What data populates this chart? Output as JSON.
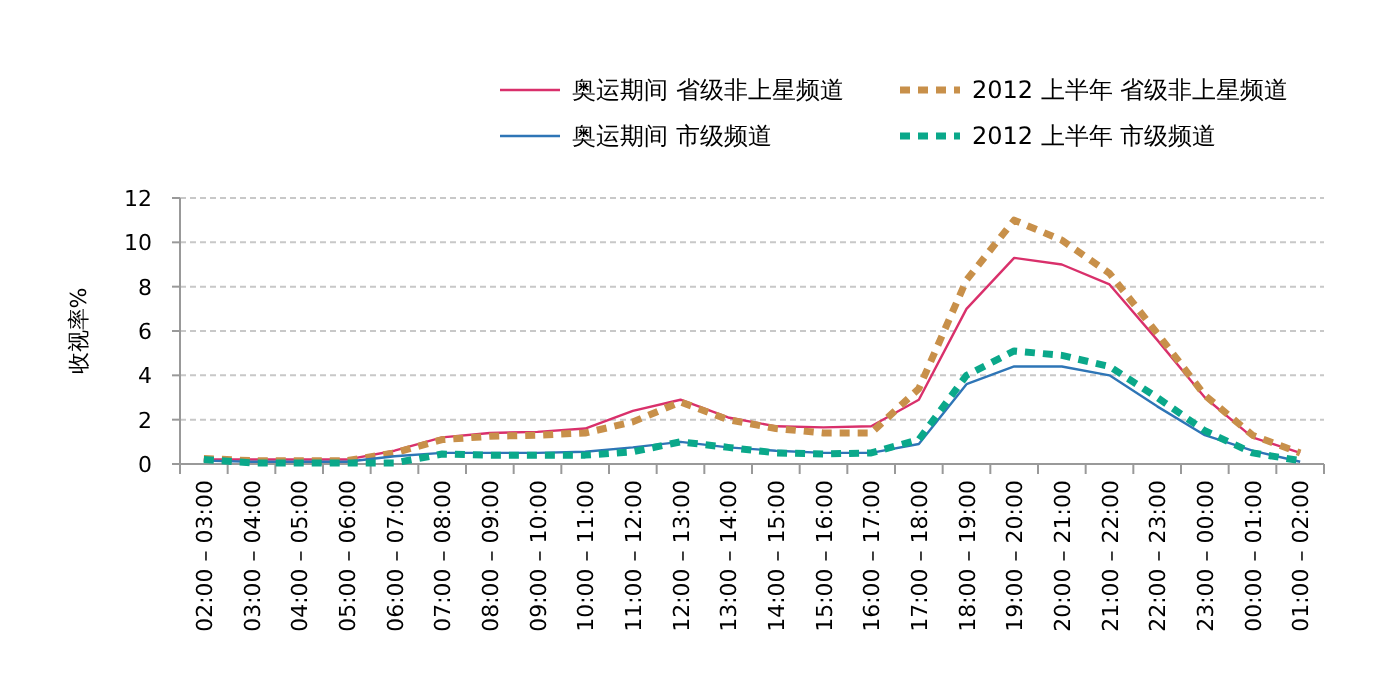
{
  "chart_data": {
    "type": "line",
    "ylabel": "收视率%",
    "categories": [
      "02:00 – 03:00",
      "03:00 – 04:00",
      "04:00 – 05:00",
      "05:00 – 06:00",
      "06:00 – 07:00",
      "07:00 – 08:00",
      "08:00 – 09:00",
      "09:00 – 10:00",
      "10:00 – 11:00",
      "11:00 – 12:00",
      "12:00 – 13:00",
      "13:00 – 14:00",
      "14:00 – 15:00",
      "15:00 – 16:00",
      "16:00 – 17:00",
      "17:00 – 18:00",
      "18:00 – 19:00",
      "19:00 – 20:00",
      "20:00 – 21:00",
      "21:00 – 22:00",
      "22:00 – 23:00",
      "23:00 – 00:00",
      "00:00 – 01:00",
      "01:00 – 02:00"
    ],
    "series": [
      {
        "name": "奥运期间 省级非上星频道",
        "color": "#d9306b",
        "line_style": "solid",
        "values": [
          0.2,
          0.2,
          0.2,
          0.2,
          0.6,
          1.2,
          1.4,
          1.45,
          1.6,
          2.4,
          2.9,
          2.1,
          1.7,
          1.65,
          1.7,
          2.9,
          7.0,
          9.3,
          9.0,
          8.1,
          5.6,
          3.0,
          1.2,
          0.5
        ]
      },
      {
        "name": "2012 上半年 省级非上星频道",
        "color": "#c8904a",
        "line_style": "dashed",
        "values": [
          0.25,
          0.15,
          0.15,
          0.15,
          0.5,
          1.1,
          1.25,
          1.3,
          1.4,
          1.9,
          2.8,
          2.0,
          1.6,
          1.4,
          1.4,
          3.4,
          8.3,
          11.0,
          10.1,
          8.6,
          5.9,
          3.1,
          1.3,
          0.5
        ]
      },
      {
        "name": "奥运期间 市级频道",
        "color": "#2e75b6",
        "line_style": "solid",
        "values": [
          0.15,
          0.1,
          0.1,
          0.1,
          0.35,
          0.5,
          0.5,
          0.5,
          0.55,
          0.75,
          1.0,
          0.75,
          0.6,
          0.5,
          0.5,
          0.9,
          3.6,
          4.4,
          4.4,
          4.0,
          2.6,
          1.3,
          0.6,
          0.1
        ]
      },
      {
        "name": "2012 上半年 市级频道",
        "color": "#0aa88a",
        "line_style": "dashed",
        "values": [
          0.2,
          0.05,
          0.05,
          0.05,
          0.05,
          0.45,
          0.4,
          0.4,
          0.4,
          0.55,
          1.0,
          0.75,
          0.5,
          0.45,
          0.5,
          1.1,
          4.0,
          5.1,
          4.9,
          4.4,
          3.0,
          1.5,
          0.5,
          0.15
        ]
      }
    ],
    "ylim": [
      0,
      12
    ],
    "yticks": [
      0,
      2,
      4,
      6,
      8,
      10,
      12
    ],
    "grid": "y",
    "legend": "top right"
  }
}
